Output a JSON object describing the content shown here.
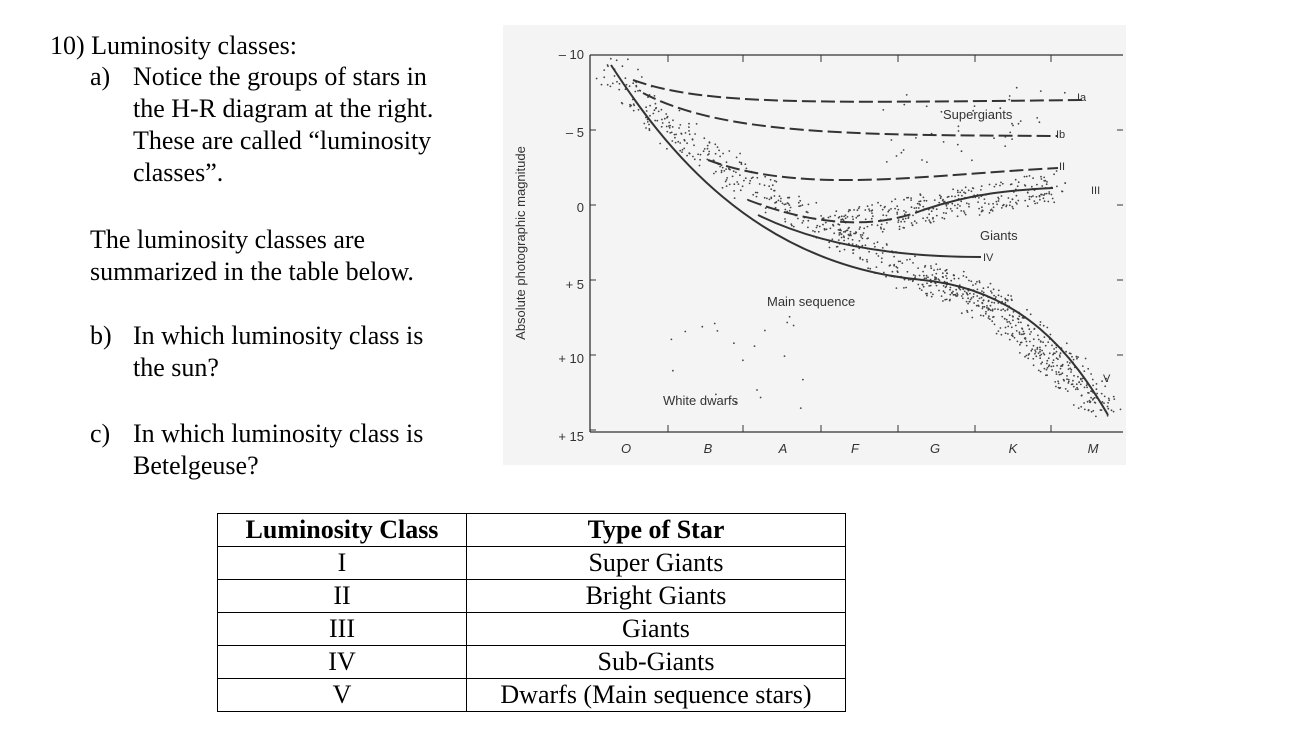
{
  "question": {
    "heading": "10) Luminosity classes:",
    "part_a": {
      "marker": "a)",
      "lines": [
        "Notice the groups of stars in",
        "the H-R diagram at the right.",
        "These are called “luminosity",
        "classes”."
      ]
    },
    "summary_lines": [
      "The luminosity classes are",
      "summarized in the table below."
    ],
    "part_b": {
      "marker": "b)",
      "lines": [
        "In which luminosity class is",
        "the sun?"
      ]
    },
    "part_c": {
      "marker": "c)",
      "lines": [
        "In which luminosity class is",
        "Betelgeuse?"
      ]
    }
  },
  "diagram": {
    "y_axis_label": "Absolute  photographic  magnitude",
    "y_ticks": [
      "– 10",
      "– 5",
      "0",
      "+ 5",
      "+ 10",
      "+ 15"
    ],
    "x_ticks": [
      "O",
      "B",
      "A",
      "F",
      "G",
      "K",
      "M"
    ],
    "region_labels": {
      "supergiants": "Supergiants",
      "giants": "Giants",
      "main_sequence": "Main sequence",
      "white_dwarfs": "White dwarfs"
    },
    "class_labels": {
      "Ia": "Ia",
      "Ib": "Ib",
      "II": "II",
      "III": "III",
      "IV": "IV",
      "V": "V"
    }
  },
  "table": {
    "headers": [
      "Luminosity Class",
      "Type of Star"
    ],
    "rows": [
      [
        "I",
        "Super Giants"
      ],
      [
        "II",
        "Bright Giants"
      ],
      [
        "III",
        "Giants"
      ],
      [
        "IV",
        "Sub-Giants"
      ],
      [
        "V",
        "Dwarfs (Main sequence stars)"
      ]
    ]
  }
}
